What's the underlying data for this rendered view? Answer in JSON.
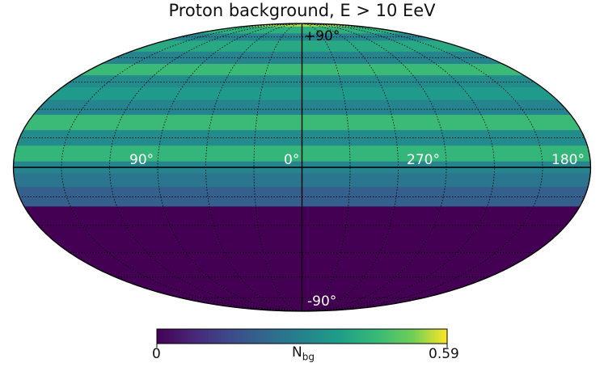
{
  "title": "Proton background, E > 10 EeV",
  "chart_data": {
    "type": "heatmap",
    "projection": "mollweide",
    "title": "Proton background, E > 10 EeV",
    "longitude_labels": [
      "90°",
      "0°",
      "270°",
      "180°"
    ],
    "latitude_labels": [
      "+90°",
      "-90°"
    ],
    "colorbar": {
      "label_main": "N",
      "label_sub": "bg",
      "min": 0,
      "max": 0.59,
      "min_label": "0",
      "max_label": "0.59",
      "colormap": "viridis"
    },
    "grid": true,
    "latitude_bands": [
      {
        "lat_range": [
          85,
          90
        ],
        "value": 0.55
      },
      {
        "lat_range": [
          78,
          85
        ],
        "value": 0.42
      },
      {
        "lat_range": [
          72,
          78
        ],
        "value": 0.3
      },
      {
        "lat_range": [
          64,
          72
        ],
        "value": 0.4
      },
      {
        "lat_range": [
          56,
          64
        ],
        "value": 0.3
      },
      {
        "lat_range": [
          49,
          56
        ],
        "value": 0.45
      },
      {
        "lat_range": [
          42,
          49
        ],
        "value": 0.32
      },
      {
        "lat_range": [
          35,
          42
        ],
        "value": 0.36
      },
      {
        "lat_range": [
          27,
          35
        ],
        "value": 0.3
      },
      {
        "lat_range": [
          19,
          27
        ],
        "value": 0.45
      },
      {
        "lat_range": [
          11,
          19
        ],
        "value": 0.32
      },
      {
        "lat_range": [
          3,
          11
        ],
        "value": 0.44
      },
      {
        "lat_range": [
          -3,
          3
        ],
        "value": 0.3
      },
      {
        "lat_range": [
          -10,
          -3
        ],
        "value": 0.26
      },
      {
        "lat_range": [
          -20,
          -10
        ],
        "value": 0.2
      },
      {
        "lat_range": [
          -90,
          -20
        ],
        "value": 0.0
      }
    ]
  }
}
